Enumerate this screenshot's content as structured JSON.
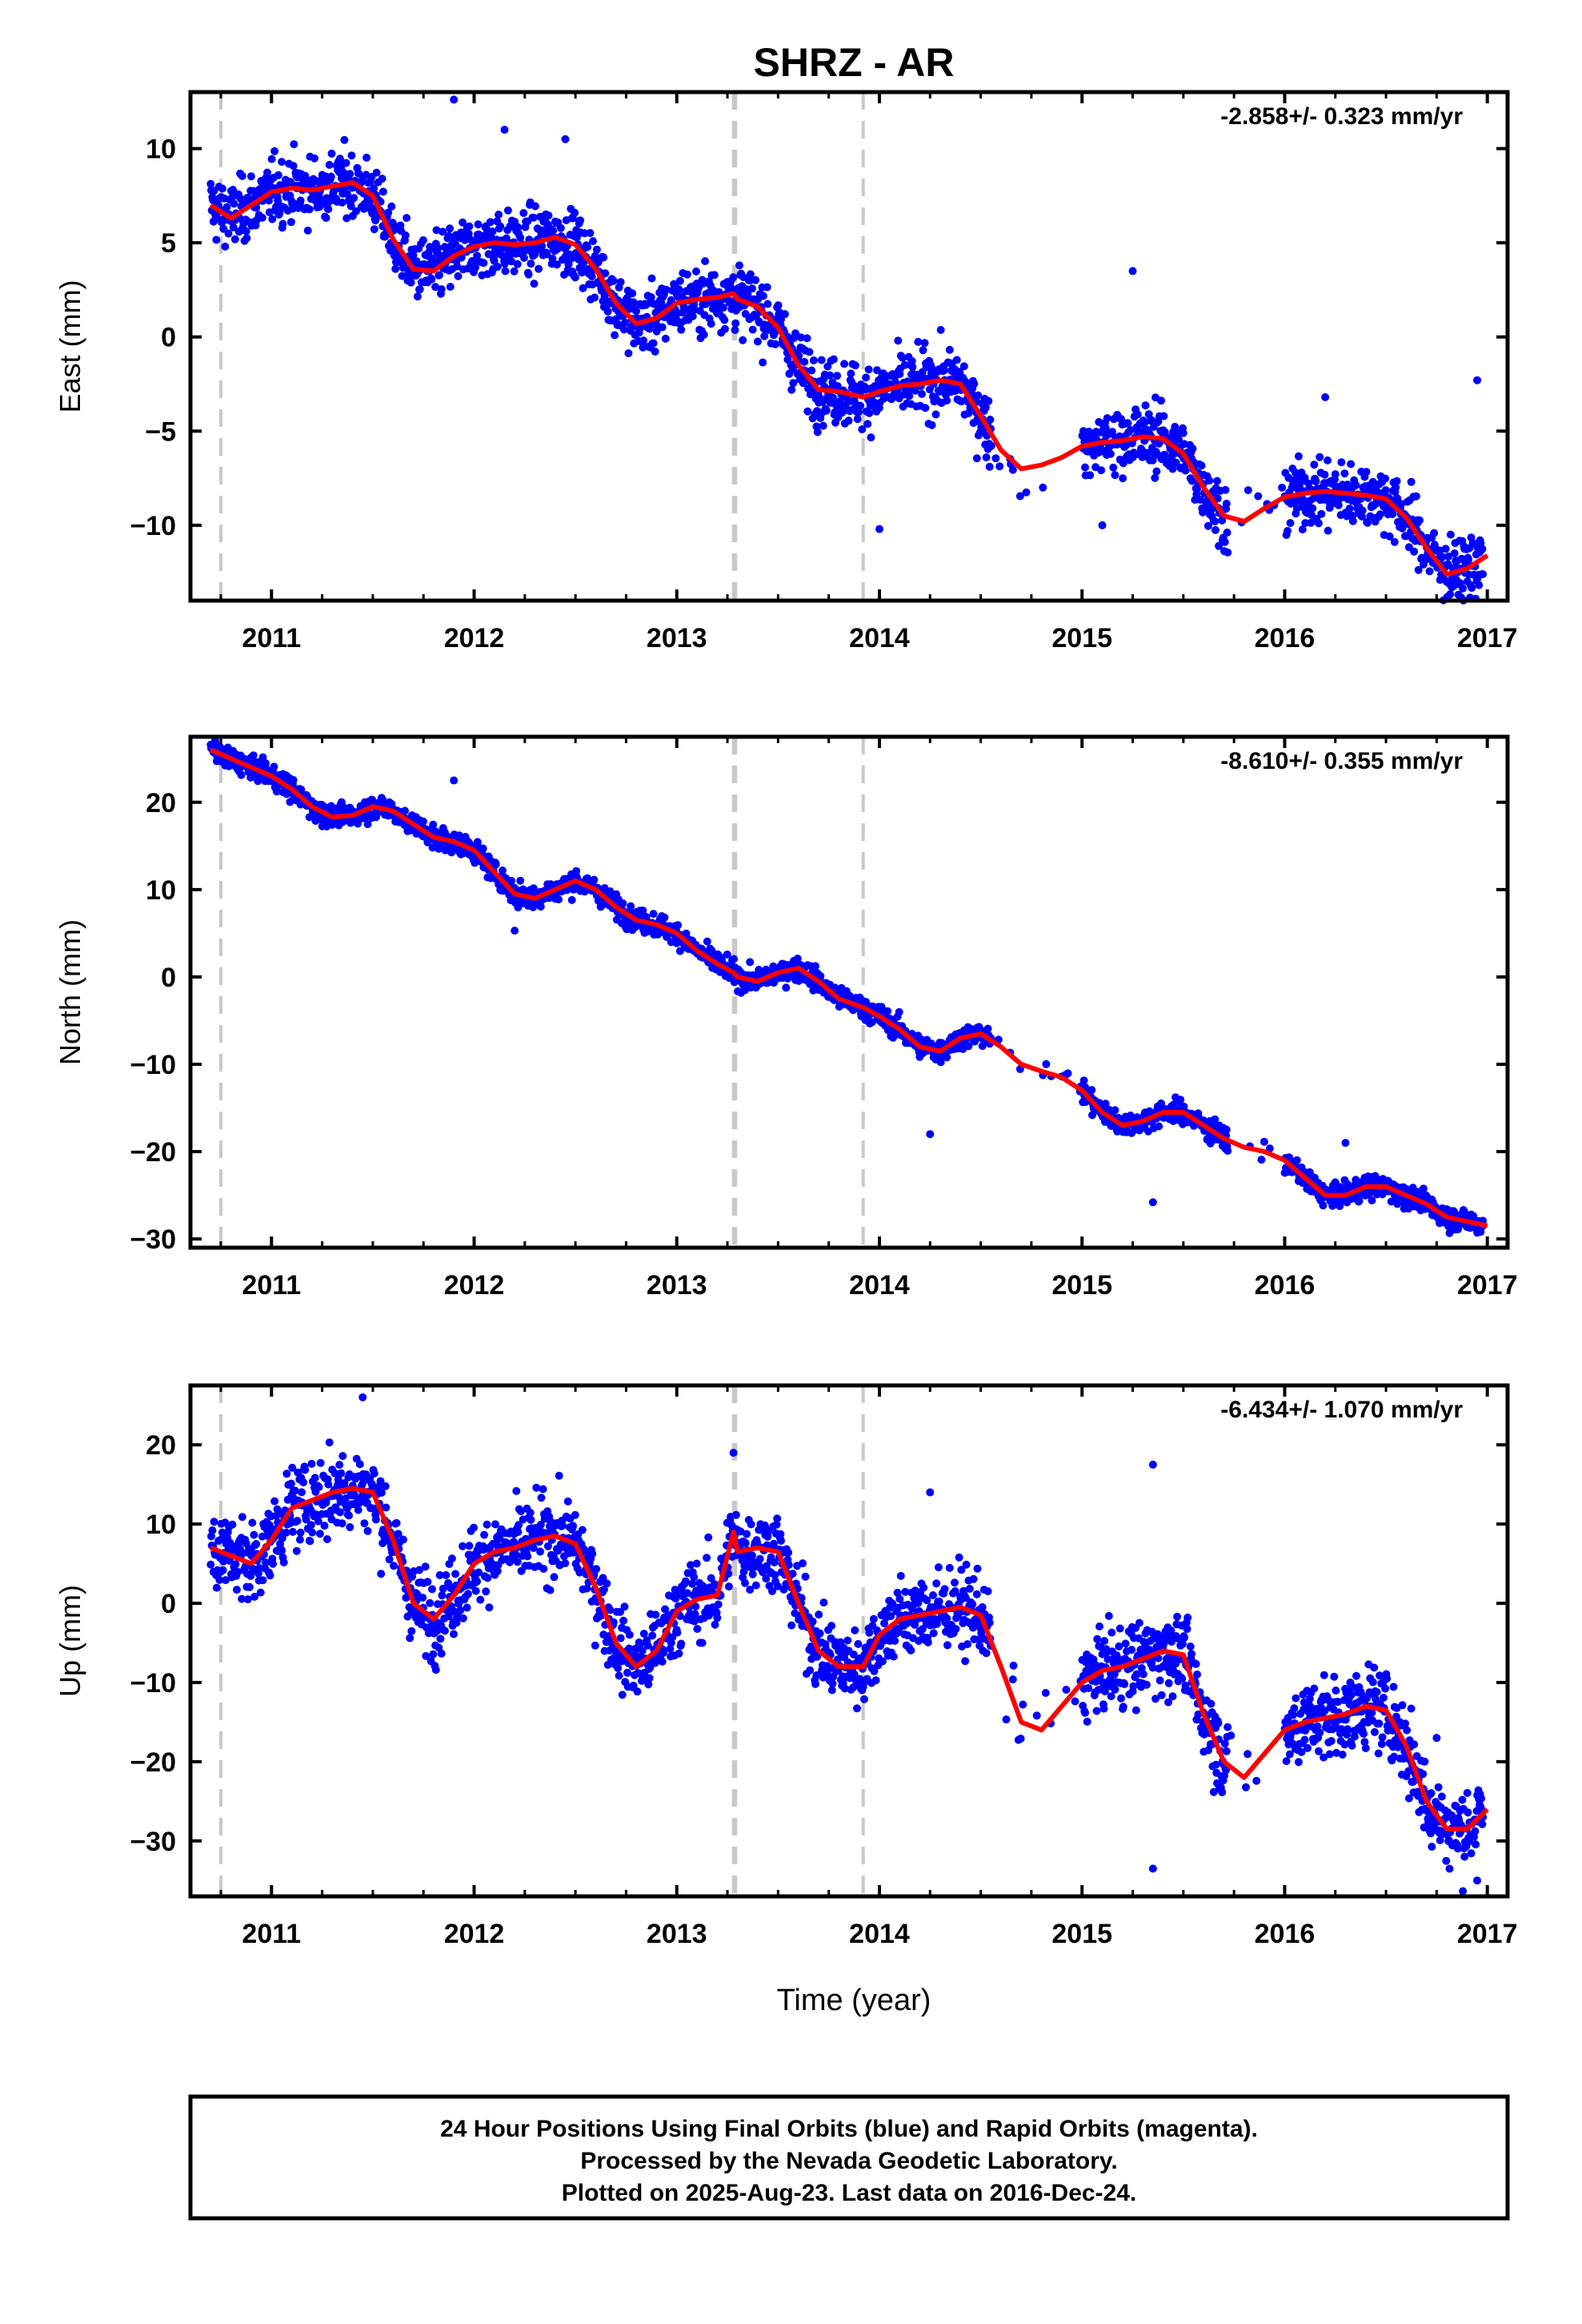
{
  "title": "SHRZ - AR",
  "xlabel": "Time (year)",
  "colors": {
    "points": "#0000ff",
    "fit": "#ff0000",
    "breaks": "#c8c8c8",
    "frame": "#000000"
  },
  "footer": {
    "line1": "24 Hour Positions Using Final Orbits (blue) and Rapid Orbits (magenta).",
    "line2": "Processed by the Nevada Geodetic Laboratory.",
    "line3": "Plotted on 2025-Aug-23. Last data on 2016-Dec-24."
  },
  "chart_data": [
    {
      "type": "scatter",
      "component": "east",
      "ylabel": "East (mm)",
      "rate_label": "-2.858+/- 0.323 mm/yr",
      "xlim": [
        2010.6,
        2017.1
      ],
      "ylim": [
        -14,
        13
      ],
      "xticks": [
        "2011",
        "2012",
        "2013",
        "2014",
        "2015",
        "2016",
        "2017"
      ],
      "yticks": [
        "10",
        "5",
        "0",
        "−5",
        "−10"
      ],
      "ytick_values": [
        10,
        5,
        0,
        -5,
        -10
      ],
      "breaks": [
        2010.75,
        2013.28,
        2013.29,
        2013.92
      ],
      "gaps": [
        [
          2014.55,
          2015.0
        ],
        [
          2015.72,
          2016.0
        ]
      ],
      "fit": {
        "x": [
          2010.7,
          2010.8,
          2010.9,
          2011.0,
          2011.1,
          2011.2,
          2011.3,
          2011.4,
          2011.5,
          2011.6,
          2011.7,
          2011.8,
          2011.9,
          2012.0,
          2012.1,
          2012.2,
          2012.3,
          2012.4,
          2012.5,
          2012.6,
          2012.7,
          2012.8,
          2012.9,
          2013.0,
          2013.1,
          2013.2,
          2013.28,
          2013.3,
          2013.4,
          2013.5,
          2013.6,
          2013.7,
          2013.8,
          2013.92,
          2014.0,
          2014.1,
          2014.2,
          2014.3,
          2014.4,
          2014.5,
          2014.6,
          2014.7,
          2014.8,
          2014.9,
          2015.0,
          2015.1,
          2015.2,
          2015.3,
          2015.4,
          2015.5,
          2015.6,
          2015.7,
          2015.8,
          2015.9,
          2016.0,
          2016.1,
          2016.2,
          2016.3,
          2016.4,
          2016.5,
          2016.6,
          2016.7,
          2016.8,
          2016.9,
          2017.0
        ],
        "y": [
          7.0,
          6.3,
          7.0,
          7.7,
          7.9,
          7.8,
          8.0,
          8.2,
          7.5,
          5.2,
          3.6,
          3.5,
          4.3,
          4.8,
          5.0,
          4.9,
          5.0,
          5.3,
          4.9,
          3.6,
          1.8,
          0.7,
          1.0,
          1.8,
          2.0,
          2.1,
          2.3,
          2.0,
          1.6,
          0.5,
          -1.5,
          -2.8,
          -2.9,
          -3.2,
          -2.9,
          -2.6,
          -2.5,
          -2.3,
          -2.5,
          -4.2,
          -6.0,
          -7.0,
          -6.8,
          -6.4,
          -5.8,
          -5.6,
          -5.5,
          -5.3,
          -5.4,
          -6.2,
          -8.0,
          -9.5,
          -9.8,
          -9.1,
          -8.5,
          -8.3,
          -8.2,
          -8.3,
          -8.4,
          -8.6,
          -9.6,
          -11.2,
          -12.6,
          -12.3,
          -11.6
        ]
      },
      "noise": 1.2,
      "outliers": [
        [
          2011.9,
          12.6
        ],
        [
          2012.15,
          11.0
        ],
        [
          2012.45,
          10.5
        ],
        [
          2014.0,
          -10.2
        ],
        [
          2015.25,
          3.5
        ],
        [
          2015.1,
          -10.0
        ],
        [
          2016.2,
          -3.2
        ],
        [
          2016.95,
          -2.3
        ]
      ]
    },
    {
      "type": "scatter",
      "component": "north",
      "ylabel": "North (mm)",
      "rate_label": "-8.610+/- 0.355 mm/yr",
      "xlim": [
        2010.6,
        2017.1
      ],
      "ylim": [
        -31,
        27.5
      ],
      "xticks": [
        "2011",
        "2012",
        "2013",
        "2014",
        "2015",
        "2016",
        "2017"
      ],
      "yticks": [
        "20",
        "10",
        "0",
        "−10",
        "−20",
        "−30"
      ],
      "ytick_values": [
        20,
        10,
        0,
        -10,
        -20,
        -30
      ],
      "breaks": [
        2010.75,
        2013.28,
        2013.29,
        2013.92
      ],
      "gaps": [
        [
          2014.55,
          2015.0
        ],
        [
          2015.72,
          2016.0
        ]
      ],
      "fit": {
        "x": [
          2010.7,
          2010.8,
          2010.9,
          2011.0,
          2011.1,
          2011.2,
          2011.3,
          2011.4,
          2011.5,
          2011.6,
          2011.7,
          2011.8,
          2011.9,
          2012.0,
          2012.1,
          2012.2,
          2012.3,
          2012.4,
          2012.5,
          2012.6,
          2012.7,
          2012.8,
          2012.9,
          2013.0,
          2013.1,
          2013.2,
          2013.28,
          2013.3,
          2013.4,
          2013.5,
          2013.6,
          2013.7,
          2013.8,
          2013.92,
          2014.0,
          2014.1,
          2014.2,
          2014.3,
          2014.4,
          2014.5,
          2014.6,
          2014.7,
          2014.8,
          2014.9,
          2015.0,
          2015.1,
          2015.2,
          2015.3,
          2015.4,
          2015.5,
          2015.6,
          2015.7,
          2015.8,
          2015.9,
          2016.0,
          2016.1,
          2016.2,
          2016.3,
          2016.4,
          2016.5,
          2016.6,
          2016.7,
          2016.8,
          2016.9,
          2017.0
        ],
        "y": [
          26.0,
          25.0,
          24.0,
          23.0,
          21.5,
          19.5,
          18.3,
          18.5,
          19.5,
          19.0,
          17.5,
          16.0,
          15.5,
          14.5,
          12.0,
          9.5,
          9.0,
          10.0,
          11.0,
          10.0,
          8.0,
          6.5,
          6.0,
          5.0,
          3.0,
          1.5,
          0.5,
          0.0,
          -0.5,
          0.5,
          1.0,
          -0.5,
          -2.5,
          -3.5,
          -4.5,
          -6.0,
          -8.0,
          -8.5,
          -7.0,
          -6.5,
          -8.0,
          -10.0,
          -10.8,
          -11.5,
          -13.0,
          -15.5,
          -17.0,
          -16.5,
          -15.5,
          -15.5,
          -17.0,
          -18.5,
          -19.5,
          -20.0,
          -21.0,
          -23.0,
          -25.0,
          -25.0,
          -24.0,
          -24.0,
          -25.0,
          -26.0,
          -27.5,
          -28.0,
          -28.5
        ]
      },
      "noise": 0.9,
      "outliers": [
        [
          2011.9,
          22.5
        ],
        [
          2012.2,
          5.3
        ],
        [
          2014.25,
          -18.0
        ],
        [
          2015.35,
          -25.8
        ],
        [
          2016.3,
          -19.0
        ]
      ]
    },
    {
      "type": "scatter",
      "component": "up",
      "ylabel": "Up (mm)",
      "rate_label": "-6.434+/- 1.070 mm/yr",
      "xlim": [
        2010.6,
        2017.1
      ],
      "ylim": [
        -37,
        27.5
      ],
      "xticks": [
        "2011",
        "2012",
        "2013",
        "2014",
        "2015",
        "2016",
        "2017"
      ],
      "yticks": [
        "20",
        "10",
        "0",
        "−10",
        "−20",
        "−30"
      ],
      "ytick_values": [
        20,
        10,
        0,
        -10,
        -20,
        -30
      ],
      "breaks": [
        2010.75,
        2013.28,
        2013.29,
        2013.92
      ],
      "gaps": [
        [
          2014.55,
          2015.0
        ],
        [
          2015.72,
          2016.0
        ]
      ],
      "fit": {
        "x": [
          2010.7,
          2010.8,
          2010.9,
          2011.0,
          2011.1,
          2011.2,
          2011.3,
          2011.4,
          2011.5,
          2011.6,
          2011.7,
          2011.8,
          2011.9,
          2012.0,
          2012.1,
          2012.2,
          2012.3,
          2012.4,
          2012.5,
          2012.6,
          2012.7,
          2012.8,
          2012.9,
          2013.0,
          2013.1,
          2013.2,
          2013.28,
          2013.3,
          2013.4,
          2013.5,
          2013.6,
          2013.7,
          2013.8,
          2013.92,
          2014.0,
          2014.1,
          2014.2,
          2014.3,
          2014.4,
          2014.5,
          2014.6,
          2014.7,
          2014.8,
          2014.9,
          2015.0,
          2015.1,
          2015.2,
          2015.3,
          2015.4,
          2015.5,
          2015.6,
          2015.7,
          2015.8,
          2015.9,
          2016.0,
          2016.1,
          2016.2,
          2016.3,
          2016.4,
          2016.5,
          2016.6,
          2016.7,
          2016.8,
          2016.9,
          2017.0
        ],
        "y": [
          7.0,
          6.0,
          5.0,
          8.0,
          12.0,
          13.0,
          14.0,
          14.5,
          14.0,
          8.0,
          0.0,
          -2.0,
          1.0,
          5.0,
          6.5,
          7.0,
          8.0,
          8.5,
          7.5,
          2.0,
          -5.0,
          -8.0,
          -6.0,
          -1.0,
          0.5,
          1.0,
          9.0,
          6.5,
          7.0,
          6.5,
          0.0,
          -6.0,
          -8.0,
          -8.0,
          -4.0,
          -2.0,
          -1.5,
          -1.0,
          -0.5,
          -1.5,
          -8.0,
          -15.0,
          -16.0,
          -13.0,
          -10.0,
          -8.5,
          -8.0,
          -7.0,
          -6.0,
          -6.5,
          -14.0,
          -20.0,
          -22.0,
          -19.0,
          -16.0,
          -15.0,
          -14.5,
          -14.0,
          -13.0,
          -13.5,
          -18.0,
          -25.0,
          -28.5,
          -28.5,
          -26.0
        ]
      },
      "noise": 3.5,
      "outliers": [
        [
          2011.45,
          26.0
        ],
        [
          2013.28,
          19.0
        ],
        [
          2015.35,
          17.5
        ],
        [
          2015.35,
          -33.5
        ],
        [
          2014.25,
          14.0
        ],
        [
          2016.75,
          -17.0
        ],
        [
          2016.95,
          -35.0
        ]
      ]
    }
  ]
}
